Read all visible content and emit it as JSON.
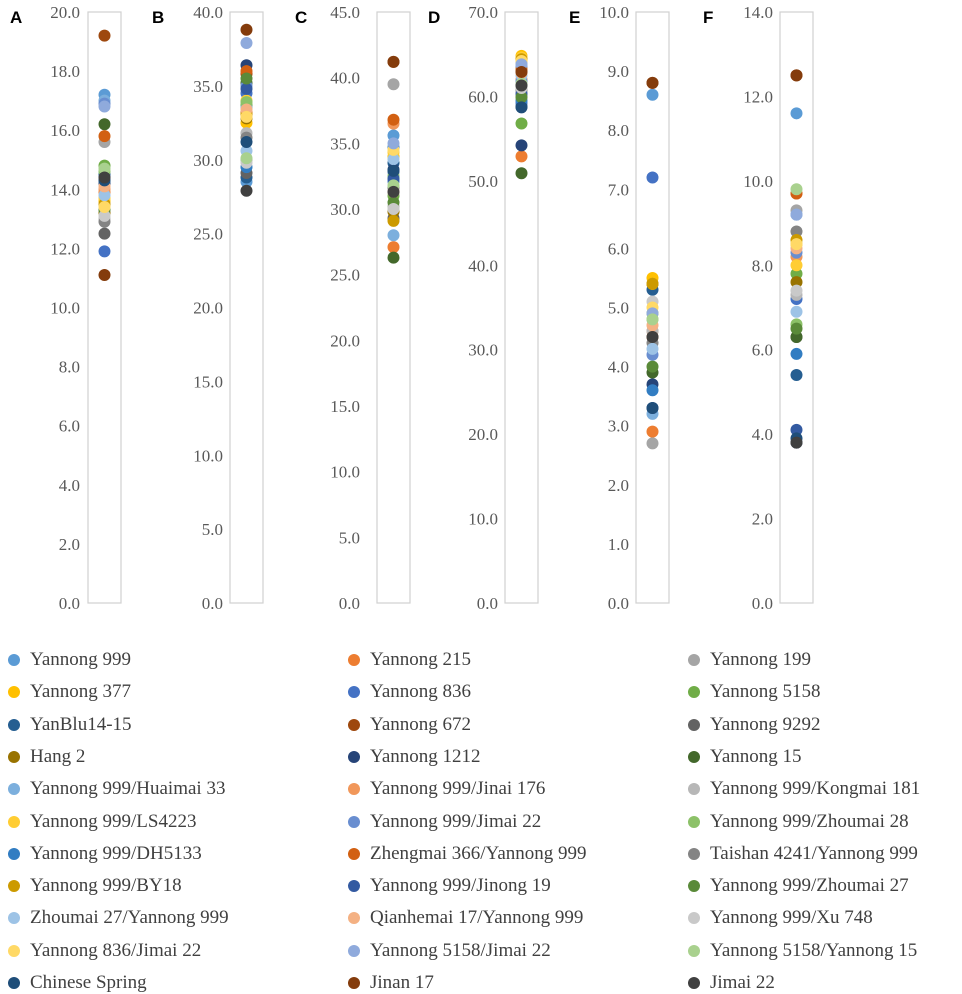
{
  "varieties": [
    {
      "name": "Yannong 999",
      "color": "#5B9BD5"
    },
    {
      "name": "Yannong 215",
      "color": "#ED7D31"
    },
    {
      "name": "Yannong 199",
      "color": "#A5A5A5"
    },
    {
      "name": "Yannong 377",
      "color": "#FFC000"
    },
    {
      "name": "Yannong 836",
      "color": "#4472C4"
    },
    {
      "name": "Yannong 5158",
      "color": "#70AD47"
    },
    {
      "name": "YanBlu14-15",
      "color": "#255E91"
    },
    {
      "name": "Yannong 672",
      "color": "#9E480E"
    },
    {
      "name": "Yannong 9292",
      "color": "#636363"
    },
    {
      "name": "Hang 2",
      "color": "#997300"
    },
    {
      "name": "Yannong 1212",
      "color": "#264478"
    },
    {
      "name": "Yannong 15",
      "color": "#43682B"
    },
    {
      "name": "Yannong 999/Huaimai 33",
      "color": "#7CAFDD"
    },
    {
      "name": "Yannong 999/Jinai 176",
      "color": "#F1975A"
    },
    {
      "name": "Yannong 999/Kongmai 181",
      "color": "#B7B7B7"
    },
    {
      "name": "Yannong 999/LS4223",
      "color": "#FFCD33"
    },
    {
      "name": "Yannong 999/Jimai 22",
      "color": "#698ED0"
    },
    {
      "name": "Yannong 999/Zhoumai 28",
      "color": "#8CC168"
    },
    {
      "name": "Yannong 999/DH5133",
      "color": "#327DC2"
    },
    {
      "name": "Zhengmai 366/Yannong 999",
      "color": "#D26012"
    },
    {
      "name": "Taishan 4241/Yannong 999",
      "color": "#848484"
    },
    {
      "name": "Yannong 999/BY18",
      "color": "#CC9A00"
    },
    {
      "name": "Yannong 999/Jinong 19",
      "color": "#335AA1"
    },
    {
      "name": "Yannong 999/Zhoumai 27",
      "color": "#5A8A39"
    },
    {
      "name": "Zhoumai 27/Yannong 999",
      "color": "#9DC3E6"
    },
    {
      "name": "Qianhemai 17/Yannong 999",
      "color": "#F4B183"
    },
    {
      "name": "Yannong 999/Xu 748",
      "color": "#C9C9C9"
    },
    {
      "name": "Yannong 836/Jimai 22",
      "color": "#FFD966"
    },
    {
      "name": "Yannong 5158/Jimai 22",
      "color": "#8FAADC"
    },
    {
      "name": "Yannong 5158/Yannong 15",
      "color": "#A9D18E"
    },
    {
      "name": "Chinese Spring",
      "color": "#1F4E79"
    },
    {
      "name": "Jinan 17",
      "color": "#843C0C"
    },
    {
      "name": "Jimai 22",
      "color": "#404040"
    }
  ],
  "chart_data": [
    {
      "type": "scatter",
      "panel": "A",
      "ylim": [
        0,
        20
      ],
      "ticks": [
        "0.0",
        "2.0",
        "4.0",
        "6.0",
        "8.0",
        "10.0",
        "12.0",
        "14.0",
        "16.0",
        "18.0",
        "20.0"
      ],
      "values": [
        17.2,
        13.9,
        15.6,
        13.6,
        11.9,
        14.8,
        14.5,
        19.2,
        12.5,
        13.2,
        14.2,
        16.2,
        17.0,
        14.0,
        13.0,
        13.7,
        16.9,
        14.6,
        14.3,
        15.8,
        12.9,
        13.5,
        14.4,
        13.3,
        13.8,
        14.1,
        13.1,
        13.4,
        16.8,
        14.7,
        14.3,
        11.1,
        14.4
      ]
    },
    {
      "type": "scatter",
      "panel": "B",
      "ylim": [
        0,
        40
      ],
      "ticks": [
        "0.0",
        "5.0",
        "10.0",
        "15.0",
        "20.0",
        "25.0",
        "30.0",
        "35.0",
        "40.0"
      ],
      "values": [
        28.5,
        33.2,
        30.0,
        32.5,
        34.5,
        33.7,
        28.8,
        35.8,
        29.1,
        32.8,
        36.4,
        35.2,
        33.5,
        33.0,
        31.8,
        34.0,
        35.0,
        33.9,
        29.5,
        36.0,
        31.5,
        33.1,
        34.8,
        35.5,
        30.6,
        33.4,
        29.8,
        32.9,
        37.9,
        30.1,
        31.2,
        38.8,
        27.9
      ]
    },
    {
      "type": "scatter",
      "panel": "C",
      "ylim": [
        0,
        45
      ],
      "ticks": [
        "0.0",
        "5.0",
        "10.0",
        "15.0",
        "20.0",
        "25.0",
        "30.0",
        "35.0",
        "40.0",
        "45.0"
      ],
      "values": [
        35.6,
        27.1,
        39.5,
        34.0,
        32.1,
        31.0,
        33.5,
        41.2,
        29.3,
        29.8,
        33.0,
        26.3,
        28.0,
        36.5,
        30.2,
        34.3,
        32.8,
        32.5,
        34.7,
        36.8,
        31.6,
        29.1,
        32.3,
        30.5,
        33.8,
        31.3,
        30.0,
        34.5,
        35.0,
        31.8,
        32.9,
        41.2,
        31.3
      ]
    },
    {
      "type": "scatter",
      "panel": "D",
      "ylim": [
        0,
        70
      ],
      "ticks": [
        "0.0",
        "10.0",
        "20.0",
        "30.0",
        "40.0",
        "50.0",
        "60.0",
        "70.0"
      ],
      "values": [
        63.5,
        52.9,
        60.5,
        64.8,
        59.2,
        56.8,
        58.8,
        63.0,
        61.3,
        64.3,
        54.2,
        50.9,
        64.0,
        62.0,
        60.0,
        64.6,
        61.8,
        61.0,
        59.5,
        63.2,
        60.8,
        64.4,
        60.3,
        59.9,
        62.5,
        62.8,
        61.0,
        64.2,
        63.8,
        61.5,
        58.7,
        62.9,
        61.3
      ]
    },
    {
      "type": "scatter",
      "panel": "E",
      "ylim": [
        0,
        10
      ],
      "ticks": [
        "0.0",
        "1.0",
        "2.0",
        "3.0",
        "4.0",
        "5.0",
        "6.0",
        "7.0",
        "8.0",
        "9.0",
        "10.0"
      ],
      "values": [
        8.6,
        2.9,
        2.7,
        5.5,
        7.2,
        4.9,
        5.3,
        8.8,
        5.4,
        5.4,
        3.7,
        3.9,
        3.2,
        4.6,
        4.6,
        5.4,
        4.2,
        4.8,
        3.6,
        4.5,
        4.4,
        5.4,
        3.3,
        4.0,
        4.3,
        4.7,
        5.1,
        5.0,
        4.9,
        4.8,
        3.3,
        8.8,
        4.5
      ]
    },
    {
      "type": "scatter",
      "panel": "F",
      "ylim": [
        0,
        14
      ],
      "ticks": [
        "0.0",
        "2.0",
        "4.0",
        "6.0",
        "8.0",
        "10.0",
        "12.0",
        "14.0"
      ],
      "values": [
        11.6,
        9.7,
        9.3,
        8.5,
        7.2,
        7.8,
        5.4,
        12.5,
        6.3,
        7.6,
        3.8,
        6.3,
        9.2,
        8.2,
        7.3,
        8.0,
        8.3,
        6.6,
        5.9,
        9.7,
        8.8,
        8.6,
        4.1,
        6.5,
        6.9,
        8.4,
        7.4,
        8.5,
        9.2,
        9.8,
        3.9,
        12.5,
        3.8
      ]
    }
  ]
}
